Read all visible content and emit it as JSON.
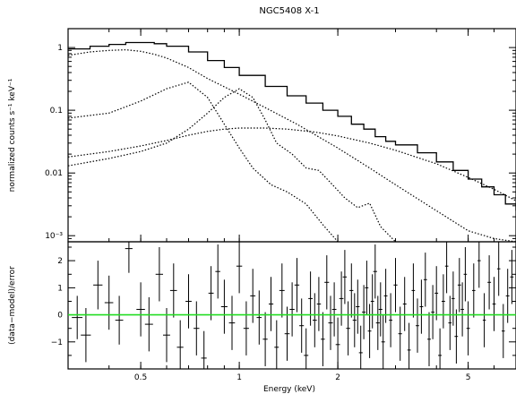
{
  "chart_data": {
    "type": "line",
    "title": "NGC5408 X-1",
    "xlabel": "Energy (keV)",
    "xscale": "log",
    "xlim": [
      0.3,
      7.0
    ],
    "x_ticks": [
      {
        "v": 0.5,
        "label": "0.5"
      },
      {
        "v": 1,
        "label": "1"
      },
      {
        "v": 2,
        "label": "2"
      },
      {
        "v": 5,
        "label": "5"
      }
    ],
    "top": {
      "ylabel": "normalized counts s⁻¹ keV⁻¹",
      "yscale": "log",
      "ylim": [
        0.0008,
        2.0
      ],
      "y_ticks": [
        {
          "v": 1,
          "label": "1"
        },
        {
          "v": 0.1,
          "label": "0.1"
        },
        {
          "v": 0.01,
          "label": "0.01"
        },
        {
          "v": 0.001,
          "label": "10⁻³"
        }
      ],
      "data_step": {
        "x": [
          0.3,
          0.35,
          0.4,
          0.45,
          0.5,
          0.55,
          0.6,
          0.7,
          0.8,
          0.9,
          1.0,
          1.2,
          1.4,
          1.6,
          1.8,
          2.0,
          2.2,
          2.4,
          2.6,
          2.8,
          3.0,
          3.5,
          4.0,
          4.5,
          5.0,
          5.5,
          6.0,
          6.5,
          7.0
        ],
        "y": [
          0.95,
          1.05,
          1.12,
          1.2,
          1.2,
          1.15,
          1.05,
          0.85,
          0.62,
          0.48,
          0.36,
          0.24,
          0.17,
          0.13,
          0.1,
          0.08,
          0.06,
          0.05,
          0.038,
          0.032,
          0.028,
          0.021,
          0.015,
          0.011,
          0.008,
          0.006,
          0.0045,
          0.0032,
          0.0025
        ]
      },
      "components": [
        {
          "x": [
            0.3,
            0.35,
            0.4,
            0.45,
            0.5,
            0.55,
            0.6,
            0.7,
            0.8,
            1.0,
            1.2,
            1.5,
            2.0,
            2.5,
            3.0,
            4.0,
            5.0,
            6.0,
            7.0
          ],
          "y": [
            0.75,
            0.85,
            0.9,
            0.92,
            0.87,
            0.78,
            0.68,
            0.48,
            0.32,
            0.18,
            0.11,
            0.06,
            0.025,
            0.012,
            0.0065,
            0.0025,
            0.0012,
            0.0009,
            0.0008
          ]
        },
        {
          "x": [
            0.3,
            0.4,
            0.5,
            0.6,
            0.7,
            0.8,
            0.9,
            1.0,
            1.2,
            1.4,
            1.7,
            2.0,
            2.5,
            3.0,
            4.0,
            5.0,
            6.0,
            7.0
          ],
          "y": [
            0.018,
            0.022,
            0.027,
            0.033,
            0.04,
            0.046,
            0.05,
            0.052,
            0.052,
            0.05,
            0.045,
            0.039,
            0.03,
            0.023,
            0.014,
            0.0085,
            0.0055,
            0.0036
          ]
        },
        {
          "x": [
            0.3,
            0.4,
            0.5,
            0.6,
            0.7,
            0.8,
            0.9,
            1.0,
            1.1,
            1.25,
            1.4,
            1.6,
            1.8,
            2.0
          ],
          "y": [
            0.075,
            0.09,
            0.14,
            0.22,
            0.28,
            0.16,
            0.06,
            0.025,
            0.012,
            0.0065,
            0.005,
            0.0032,
            0.0015,
            0.0008
          ]
        },
        {
          "x": [
            0.3,
            0.4,
            0.5,
            0.6,
            0.7,
            0.8,
            0.9,
            1.0,
            1.1,
            1.2,
            1.3,
            1.45,
            1.6,
            1.75,
            1.9,
            2.1,
            2.3,
            2.5,
            2.7,
            3.0
          ],
          "y": [
            0.013,
            0.017,
            0.022,
            0.03,
            0.05,
            0.09,
            0.16,
            0.22,
            0.16,
            0.07,
            0.03,
            0.02,
            0.012,
            0.011,
            0.007,
            0.004,
            0.0028,
            0.0033,
            0.0014,
            0.0008
          ]
        }
      ]
    },
    "bottom": {
      "ylabel": "(data−model)/error",
      "ylim": [
        -2.0,
        2.7
      ],
      "y_ticks": [
        {
          "v": 2,
          "label": "2"
        },
        {
          "v": 1,
          "label": "1"
        },
        {
          "v": 0,
          "label": "0"
        },
        {
          "v": -1,
          "label": "−1"
        }
      ],
      "zero_line_color": "#22dd22",
      "residuals": [
        {
          "x": 0.32,
          "y": -0.1,
          "e": 0.8,
          "xw": 0.012
        },
        {
          "x": 0.34,
          "y": -0.75,
          "e": 1.0,
          "xw": 0.012
        },
        {
          "x": 0.37,
          "y": 1.1,
          "e": 0.9,
          "xw": 0.012
        },
        {
          "x": 0.4,
          "y": 0.45,
          "e": 1.0,
          "xw": 0.012
        },
        {
          "x": 0.43,
          "y": -0.2,
          "e": 0.9,
          "xw": 0.012
        },
        {
          "x": 0.46,
          "y": 2.45,
          "e": 0.9,
          "xw": 0.012
        },
        {
          "x": 0.5,
          "y": 0.2,
          "e": 1.0,
          "xw": 0.015
        },
        {
          "x": 0.53,
          "y": -0.35,
          "e": 1.0,
          "xw": 0.015
        },
        {
          "x": 0.57,
          "y": 1.5,
          "e": 1.0,
          "xw": 0.015
        },
        {
          "x": 0.6,
          "y": -0.75,
          "e": 1.0,
          "xw": 0.015
        },
        {
          "x": 0.63,
          "y": 0.9,
          "e": 1.0,
          "xw": 0.015
        },
        {
          "x": 0.66,
          "y": -1.2,
          "e": 1.0,
          "xw": 0.015
        },
        {
          "x": 0.7,
          "y": 0.5,
          "e": 1.0,
          "xw": 0.015
        },
        {
          "x": 0.74,
          "y": -0.5,
          "e": 1.0,
          "xw": 0.015
        },
        {
          "x": 0.78,
          "y": -1.6,
          "e": 1.0,
          "xw": 0.015
        },
        {
          "x": 0.82,
          "y": 0.8,
          "e": 1.0,
          "xw": 0.015
        },
        {
          "x": 0.86,
          "y": 1.6,
          "e": 1.0,
          "xw": 0.015
        },
        {
          "x": 0.9,
          "y": 0.3,
          "e": 1.0,
          "xw": 0.02
        },
        {
          "x": 0.95,
          "y": -0.3,
          "e": 1.0,
          "xw": 0.02
        },
        {
          "x": 1.0,
          "y": 1.8,
          "e": 1.0,
          "xw": 0.02
        },
        {
          "x": 1.05,
          "y": -0.5,
          "e": 1.0,
          "xw": 0.02
        },
        {
          "x": 1.1,
          "y": 0.7,
          "e": 1.0,
          "xw": 0.02
        },
        {
          "x": 1.15,
          "y": -0.1,
          "e": 1.0,
          "xw": 0.02
        },
        {
          "x": 1.2,
          "y": -0.9,
          "e": 1.0,
          "xw": 0.02
        },
        {
          "x": 1.25,
          "y": 0.4,
          "e": 1.0,
          "xw": 0.02
        },
        {
          "x": 1.3,
          "y": -1.2,
          "e": 1.0,
          "xw": 0.02
        },
        {
          "x": 1.35,
          "y": 0.9,
          "e": 1.0,
          "xw": 0.025
        },
        {
          "x": 1.4,
          "y": -0.7,
          "e": 1.0,
          "xw": 0.025
        },
        {
          "x": 1.45,
          "y": 0.2,
          "e": 1.0,
          "xw": 0.025
        },
        {
          "x": 1.5,
          "y": 1.1,
          "e": 1.0,
          "xw": 0.025
        },
        {
          "x": 1.55,
          "y": -0.4,
          "e": 1.0,
          "xw": 0.025
        },
        {
          "x": 1.6,
          "y": -1.5,
          "e": 1.0,
          "xw": 0.025
        },
        {
          "x": 1.65,
          "y": 0.6,
          "e": 1.0,
          "xw": 0.025
        },
        {
          "x": 1.7,
          "y": -0.2,
          "e": 1.0,
          "xw": 0.025
        },
        {
          "x": 1.75,
          "y": 0.4,
          "e": 1.0,
          "xw": 0.025
        },
        {
          "x": 1.8,
          "y": -0.9,
          "e": 1.0,
          "xw": 0.025
        },
        {
          "x": 1.85,
          "y": 1.2,
          "e": 1.0,
          "xw": 0.03
        },
        {
          "x": 1.9,
          "y": -0.3,
          "e": 1.0,
          "xw": 0.03
        },
        {
          "x": 1.95,
          "y": 0.2,
          "e": 1.0,
          "xw": 0.03
        },
        {
          "x": 2.0,
          "y": -1.1,
          "e": 1.0,
          "xw": 0.03
        },
        {
          "x": 2.05,
          "y": 0.6,
          "e": 1.0,
          "xw": 0.03
        },
        {
          "x": 2.1,
          "y": 1.4,
          "e": 1.0,
          "xw": 0.03
        },
        {
          "x": 2.15,
          "y": -0.5,
          "e": 1.0,
          "xw": 0.03
        },
        {
          "x": 2.2,
          "y": 0.9,
          "e": 1.0,
          "xw": 0.03
        },
        {
          "x": 2.25,
          "y": -0.2,
          "e": 1.0,
          "xw": 0.03
        },
        {
          "x": 2.3,
          "y": 0.3,
          "e": 1.0,
          "xw": 0.03
        },
        {
          "x": 2.35,
          "y": -1.4,
          "e": 1.0,
          "xw": 0.03
        },
        {
          "x": 2.4,
          "y": 0.1,
          "e": 1.0,
          "xw": 0.03
        },
        {
          "x": 2.45,
          "y": 1.0,
          "e": 1.0,
          "xw": 0.03
        },
        {
          "x": 2.5,
          "y": -0.6,
          "e": 1.0,
          "xw": 0.03
        },
        {
          "x": 2.55,
          "y": 0.5,
          "e": 1.0,
          "xw": 0.03
        },
        {
          "x": 2.6,
          "y": 1.6,
          "e": 1.0,
          "xw": 0.035
        },
        {
          "x": 2.65,
          "y": -0.3,
          "e": 1.0,
          "xw": 0.035
        },
        {
          "x": 2.7,
          "y": 0.2,
          "e": 1.0,
          "xw": 0.035
        },
        {
          "x": 2.75,
          "y": -1.0,
          "e": 1.0,
          "xw": 0.035
        },
        {
          "x": 2.8,
          "y": 0.7,
          "e": 1.0,
          "xw": 0.035
        },
        {
          "x": 2.9,
          "y": -0.2,
          "e": 1.0,
          "xw": 0.035
        },
        {
          "x": 3.0,
          "y": 1.1,
          "e": 1.0,
          "xw": 0.04
        },
        {
          "x": 3.1,
          "y": -0.7,
          "e": 1.0,
          "xw": 0.04
        },
        {
          "x": 3.2,
          "y": 0.4,
          "e": 1.0,
          "xw": 0.04
        },
        {
          "x": 3.3,
          "y": -1.3,
          "e": 1.0,
          "xw": 0.04
        },
        {
          "x": 3.4,
          "y": 0.9,
          "e": 1.0,
          "xw": 0.04
        },
        {
          "x": 3.5,
          "y": -0.4,
          "e": 1.0,
          "xw": 0.04
        },
        {
          "x": 3.6,
          "y": 0.3,
          "e": 1.0,
          "xw": 0.045
        },
        {
          "x": 3.7,
          "y": 1.3,
          "e": 1.0,
          "xw": 0.045
        },
        {
          "x": 3.8,
          "y": -0.9,
          "e": 1.0,
          "xw": 0.045
        },
        {
          "x": 3.9,
          "y": 0.1,
          "e": 1.0,
          "xw": 0.045
        },
        {
          "x": 4.0,
          "y": 0.8,
          "e": 1.0,
          "xw": 0.05
        },
        {
          "x": 4.1,
          "y": -1.5,
          "e": 1.0,
          "xw": 0.05
        },
        {
          "x": 4.2,
          "y": 0.5,
          "e": 1.0,
          "xw": 0.05
        },
        {
          "x": 4.3,
          "y": 1.8,
          "e": 1.0,
          "xw": 0.05
        },
        {
          "x": 4.4,
          "y": -0.3,
          "e": 1.0,
          "xw": 0.05
        },
        {
          "x": 4.5,
          "y": 0.6,
          "e": 1.0,
          "xw": 0.05
        },
        {
          "x": 4.6,
          "y": -0.8,
          "e": 1.0,
          "xw": 0.055
        },
        {
          "x": 4.7,
          "y": 1.1,
          "e": 1.0,
          "xw": 0.055
        },
        {
          "x": 4.8,
          "y": 0.2,
          "e": 1.0,
          "xw": 0.055
        },
        {
          "x": 4.9,
          "y": 1.5,
          "e": 1.0,
          "xw": 0.055
        },
        {
          "x": 5.0,
          "y": -0.5,
          "e": 1.0,
          "xw": 0.06
        },
        {
          "x": 5.2,
          "y": 0.9,
          "e": 1.0,
          "xw": 0.06
        },
        {
          "x": 5.4,
          "y": 2.0,
          "e": 1.0,
          "xw": 0.06
        },
        {
          "x": 5.6,
          "y": -0.2,
          "e": 1.0,
          "xw": 0.06
        },
        {
          "x": 5.8,
          "y": 1.2,
          "e": 1.0,
          "xw": 0.07
        },
        {
          "x": 6.0,
          "y": 0.4,
          "e": 1.0,
          "xw": 0.07
        },
        {
          "x": 6.2,
          "y": 1.7,
          "e": 1.0,
          "xw": 0.07
        },
        {
          "x": 6.4,
          "y": -0.6,
          "e": 1.0,
          "xw": 0.07
        },
        {
          "x": 6.6,
          "y": 0.7,
          "e": 1.0,
          "xw": 0.08
        },
        {
          "x": 6.8,
          "y": 1.4,
          "e": 1.0,
          "xw": 0.08
        }
      ]
    }
  }
}
